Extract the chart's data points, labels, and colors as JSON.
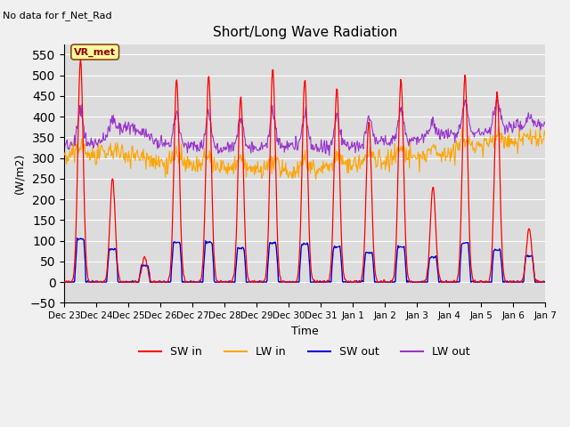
{
  "title": "Short/Long Wave Radiation",
  "xlabel": "Time",
  "ylabel": "(W/m2)",
  "ylim": [
    -50,
    575
  ],
  "yticks": [
    -50,
    0,
    50,
    100,
    150,
    200,
    250,
    300,
    350,
    400,
    450,
    500,
    550
  ],
  "note_text": "No data for f_Net_Rad",
  "legend_label_text": "VR_met",
  "bg_color": "#dcdcdc",
  "sw_in_color": "#ff0000",
  "lw_in_color": "#ffa500",
  "sw_out_color": "#0000dd",
  "lw_out_color": "#9933cc",
  "line_width": 1.0,
  "n_days": 15,
  "sw_in_peaks": [
    540,
    250,
    60,
    490,
    500,
    450,
    515,
    490,
    470,
    390,
    490,
    230,
    500,
    460,
    130
  ],
  "sw_out_peaks": [
    105,
    80,
    40,
    95,
    97,
    82,
    95,
    92,
    85,
    72,
    85,
    60,
    95,
    78,
    62
  ],
  "lw_in_base": [
    300,
    305,
    310,
    290,
    280,
    275,
    270,
    268,
    275,
    285,
    295,
    300,
    315,
    330,
    340
  ],
  "lw_out_base": [
    330,
    335,
    380,
    330,
    330,
    325,
    325,
    330,
    325,
    330,
    340,
    345,
    355,
    365,
    375
  ]
}
